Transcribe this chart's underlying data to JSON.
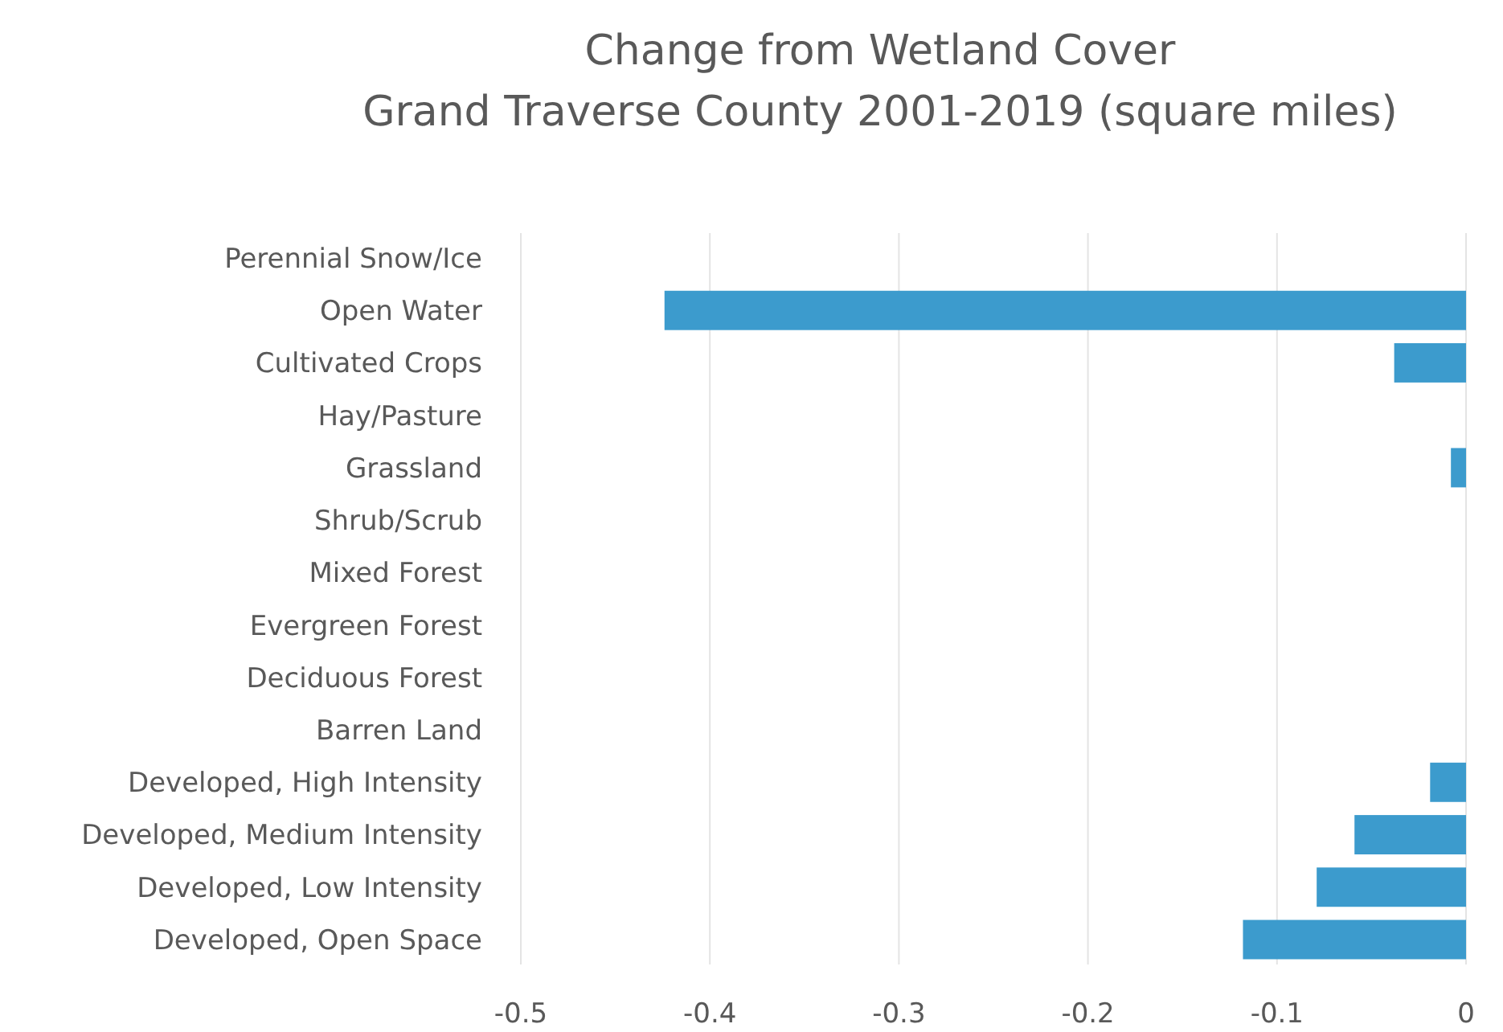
{
  "chart_data": {
    "type": "bar",
    "orientation": "horizontal",
    "title": "Change from Wetland Cover\nGrand Traverse County 2001-2019 (square miles)",
    "categories": [
      "Perennial Snow/Ice",
      "Open Water",
      "Cultivated Crops",
      "Hay/Pasture",
      "Grassland",
      "Shrub/Scrub",
      "Mixed Forest",
      "Evergreen Forest",
      "Deciduous Forest",
      "Barren Land",
      "Developed, High Intensity",
      "Developed, Medium Intensity",
      "Developed, Low Intensity",
      "Developed, Open Space"
    ],
    "values": [
      null,
      -0.424,
      -0.038,
      null,
      -0.008,
      null,
      null,
      null,
      null,
      null,
      -0.019,
      -0.059,
      -0.079,
      -0.118
    ],
    "color": "#3c9bcd",
    "xlim": [
      -0.5,
      0
    ],
    "xticks": [
      -0.5,
      -0.4,
      -0.3,
      -0.2,
      -0.1,
      0
    ],
    "grid": "x"
  }
}
